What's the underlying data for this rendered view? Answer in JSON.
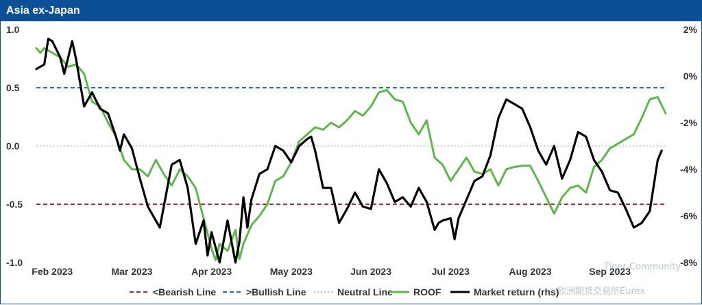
{
  "chart_data": {
    "type": "line",
    "title": "Asia ex-Japan",
    "x_ticks": [
      "Feb 2023",
      "Mar 2023",
      "Apr 2023",
      "May 2023",
      "Jun 2023",
      "Jul 2023",
      "Aug 2023",
      "Sep 2023"
    ],
    "ylim_left": [
      -1.0,
      1.0
    ],
    "yticks_left": [
      "1.0",
      "0.5",
      "0.0",
      "-0.5",
      "-1.0"
    ],
    "ylim_right": [
      -8,
      2
    ],
    "yticks_right": [
      "2%",
      "0%",
      "-2%",
      "-4%",
      "-6%",
      "-8%"
    ],
    "x_range": [
      0,
      7.9
    ],
    "reference_lines": [
      {
        "name": "<Bearish Line",
        "value": -0.5,
        "color": "#c0202a",
        "style": "dashed"
      },
      {
        "name": ">Bullish Line",
        "value": 0.5,
        "color": "#1f6fc5",
        "style": "dashed"
      },
      {
        "name": "Neutral Line",
        "value": 0.0,
        "color": "#bbbbbb",
        "style": "dotted"
      }
    ],
    "series": [
      {
        "name": "ROOF",
        "axis": "left",
        "color": "#5cb848",
        "points": [
          [
            0,
            0.84
          ],
          [
            0.05,
            0.8
          ],
          [
            0.1,
            0.84
          ],
          [
            0.2,
            0.8
          ],
          [
            0.3,
            0.76
          ],
          [
            0.4,
            0.68
          ],
          [
            0.5,
            0.7
          ],
          [
            0.6,
            0.62
          ],
          [
            0.7,
            0.38
          ],
          [
            0.8,
            0.34
          ],
          [
            0.9,
            0.2
          ],
          [
            1.0,
            0.08
          ],
          [
            1.1,
            -0.12
          ],
          [
            1.2,
            -0.2
          ],
          [
            1.3,
            -0.2
          ],
          [
            1.4,
            -0.26
          ],
          [
            1.5,
            -0.12
          ],
          [
            1.6,
            -0.24
          ],
          [
            1.7,
            -0.34
          ],
          [
            1.8,
            -0.2
          ],
          [
            1.9,
            -0.26
          ],
          [
            2.0,
            -0.36
          ],
          [
            2.1,
            -0.62
          ],
          [
            2.2,
            -0.88
          ],
          [
            2.25,
            -0.98
          ],
          [
            2.3,
            -0.84
          ],
          [
            2.4,
            -0.9
          ],
          [
            2.5,
            -0.72
          ],
          [
            2.55,
            -0.97
          ],
          [
            2.6,
            -0.84
          ],
          [
            2.7,
            -0.68
          ],
          [
            2.8,
            -0.6
          ],
          [
            2.9,
            -0.5
          ],
          [
            3.0,
            -0.3
          ],
          [
            3.1,
            -0.26
          ],
          [
            3.2,
            -0.14
          ],
          [
            3.3,
            0.04
          ],
          [
            3.4,
            0.1
          ],
          [
            3.5,
            0.16
          ],
          [
            3.6,
            0.14
          ],
          [
            3.7,
            0.2
          ],
          [
            3.8,
            0.16
          ],
          [
            3.9,
            0.22
          ],
          [
            4.0,
            0.3
          ],
          [
            4.1,
            0.26
          ],
          [
            4.2,
            0.34
          ],
          [
            4.3,
            0.46
          ],
          [
            4.4,
            0.48
          ],
          [
            4.5,
            0.4
          ],
          [
            4.6,
            0.38
          ],
          [
            4.7,
            0.2
          ],
          [
            4.8,
            0.1
          ],
          [
            4.9,
            0.22
          ],
          [
            5.0,
            -0.1
          ],
          [
            5.1,
            -0.16
          ],
          [
            5.2,
            -0.3
          ],
          [
            5.3,
            -0.2
          ],
          [
            5.4,
            -0.1
          ],
          [
            5.5,
            -0.22
          ],
          [
            5.6,
            -0.24
          ],
          [
            5.7,
            -0.2
          ],
          [
            5.8,
            -0.34
          ],
          [
            5.9,
            -0.2
          ],
          [
            6.0,
            -0.18
          ],
          [
            6.1,
            -0.17
          ],
          [
            6.2,
            -0.17
          ],
          [
            6.3,
            -0.3
          ],
          [
            6.4,
            -0.44
          ],
          [
            6.5,
            -0.58
          ],
          [
            6.6,
            -0.44
          ],
          [
            6.7,
            -0.36
          ],
          [
            6.8,
            -0.34
          ],
          [
            6.9,
            -0.4
          ],
          [
            7.0,
            -0.18
          ],
          [
            7.1,
            -0.12
          ],
          [
            7.2,
            -0.02
          ],
          [
            7.3,
            0.02
          ],
          [
            7.4,
            0.06
          ],
          [
            7.5,
            0.1
          ],
          [
            7.6,
            0.24
          ],
          [
            7.7,
            0.4
          ],
          [
            7.8,
            0.42
          ],
          [
            7.9,
            0.28
          ]
        ]
      },
      {
        "name": "Market return (rhs)",
        "axis": "right",
        "color": "#000000",
        "points": [
          [
            0,
            0.3
          ],
          [
            0.1,
            0.5
          ],
          [
            0.15,
            1.6
          ],
          [
            0.2,
            1.5
          ],
          [
            0.3,
            0.8
          ],
          [
            0.35,
            0.1
          ],
          [
            0.4,
            0.8
          ],
          [
            0.45,
            1.5
          ],
          [
            0.5,
            0.7
          ],
          [
            0.6,
            -1.3
          ],
          [
            0.7,
            -0.7
          ],
          [
            0.8,
            -1.4
          ],
          [
            0.9,
            -1.6
          ],
          [
            1.0,
            -2.6
          ],
          [
            1.05,
            -3.2
          ],
          [
            1.1,
            -2.5
          ],
          [
            1.2,
            -3.1
          ],
          [
            1.3,
            -4.4
          ],
          [
            1.4,
            -5.6
          ],
          [
            1.5,
            -6.2
          ],
          [
            1.55,
            -6.5
          ],
          [
            1.6,
            -5.6
          ],
          [
            1.7,
            -3.8
          ],
          [
            1.8,
            -3.6
          ],
          [
            1.9,
            -4.8
          ],
          [
            2.0,
            -7.2
          ],
          [
            2.1,
            -6.2
          ],
          [
            2.15,
            -7.7
          ],
          [
            2.2,
            -6.7
          ],
          [
            2.3,
            -8.0
          ],
          [
            2.35,
            -7.1
          ],
          [
            2.4,
            -6.2
          ],
          [
            2.5,
            -8.0
          ],
          [
            2.55,
            -7.1
          ],
          [
            2.6,
            -5.2
          ],
          [
            2.65,
            -6.5
          ],
          [
            2.7,
            -5.3
          ],
          [
            2.8,
            -4.2
          ],
          [
            2.9,
            -4.0
          ],
          [
            3.0,
            -3.0
          ],
          [
            3.1,
            -3.2
          ],
          [
            3.2,
            -3.7
          ],
          [
            3.3,
            -3.0
          ],
          [
            3.4,
            -2.7
          ],
          [
            3.45,
            -2.6
          ],
          [
            3.5,
            -3.2
          ],
          [
            3.6,
            -4.8
          ],
          [
            3.7,
            -4.8
          ],
          [
            3.8,
            -6.3
          ],
          [
            3.9,
            -5.7
          ],
          [
            4.0,
            -5.0
          ],
          [
            4.1,
            -5.6
          ],
          [
            4.2,
            -5.7
          ],
          [
            4.3,
            -4.0
          ],
          [
            4.4,
            -4.6
          ],
          [
            4.5,
            -5.4
          ],
          [
            4.6,
            -5.2
          ],
          [
            4.7,
            -5.6
          ],
          [
            4.8,
            -4.8
          ],
          [
            4.9,
            -5.4
          ],
          [
            5.0,
            -6.6
          ],
          [
            5.05,
            -6.3
          ],
          [
            5.1,
            -6.2
          ],
          [
            5.2,
            -6.1
          ],
          [
            5.25,
            -7.0
          ],
          [
            5.3,
            -6.1
          ],
          [
            5.4,
            -5.3
          ],
          [
            5.5,
            -4.5
          ],
          [
            5.6,
            -4.3
          ],
          [
            5.7,
            -3.4
          ],
          [
            5.8,
            -1.8
          ],
          [
            5.9,
            -1.0
          ],
          [
            6.0,
            -1.2
          ],
          [
            6.1,
            -1.4
          ],
          [
            6.2,
            -2.2
          ],
          [
            6.3,
            -3.2
          ],
          [
            6.4,
            -3.8
          ],
          [
            6.5,
            -3.0
          ],
          [
            6.6,
            -4.4
          ],
          [
            6.7,
            -3.6
          ],
          [
            6.8,
            -2.4
          ],
          [
            6.9,
            -2.6
          ],
          [
            7.0,
            -3.6
          ],
          [
            7.1,
            -4.1
          ],
          [
            7.2,
            -4.9
          ],
          [
            7.3,
            -5.0
          ],
          [
            7.4,
            -5.7
          ],
          [
            7.5,
            -6.5
          ],
          [
            7.6,
            -6.3
          ],
          [
            7.7,
            -5.8
          ],
          [
            7.8,
            -3.6
          ],
          [
            7.85,
            -3.2
          ]
        ]
      }
    ],
    "legend": [
      "<Bearish Line",
      ">Bullish Line",
      "Neutral Line",
      "ROOF",
      "Market return (rhs)"
    ]
  },
  "watermarks": [
    "Tiger Community",
    "欧洲期货交易所Eurex"
  ]
}
